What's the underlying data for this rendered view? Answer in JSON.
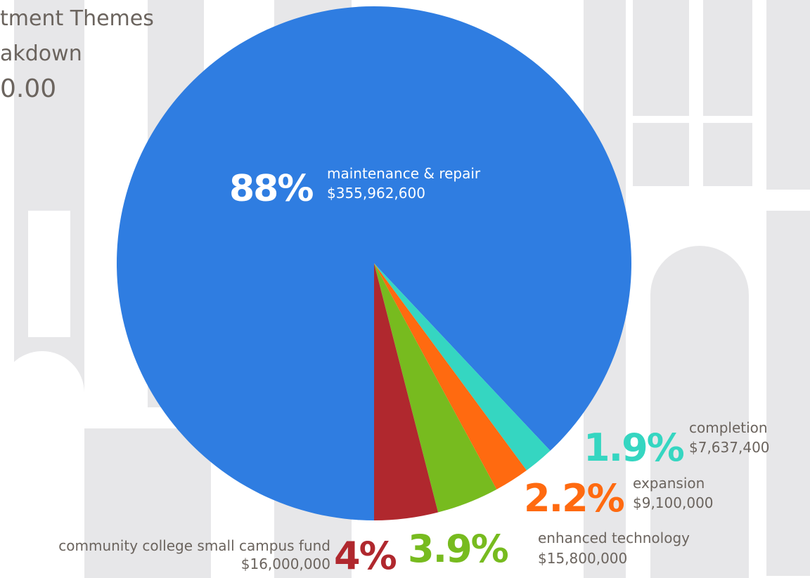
{
  "header": {
    "lines": [
      "tment Themes",
      "akdown",
      "0.00"
    ]
  },
  "chart_data": {
    "type": "pie",
    "categories": [
      "maintenance & repair",
      "completion",
      "expansion",
      "enhanced technology",
      "community college small campus fund"
    ],
    "values": [
      88,
      1.9,
      2.2,
      3.9,
      4
    ],
    "value_labels": [
      "88%",
      "1.9%",
      "2.2%",
      "3.9%",
      "4%"
    ],
    "amount_labels": [
      "$355,962,600",
      "$7,637,400",
      "$9,100,000",
      "$15,800,000",
      "$16,000,000"
    ],
    "colors": [
      "#2f7de1",
      "#35d6c1",
      "#ff6a10",
      "#77bb1f",
      "#b0282e"
    ]
  }
}
